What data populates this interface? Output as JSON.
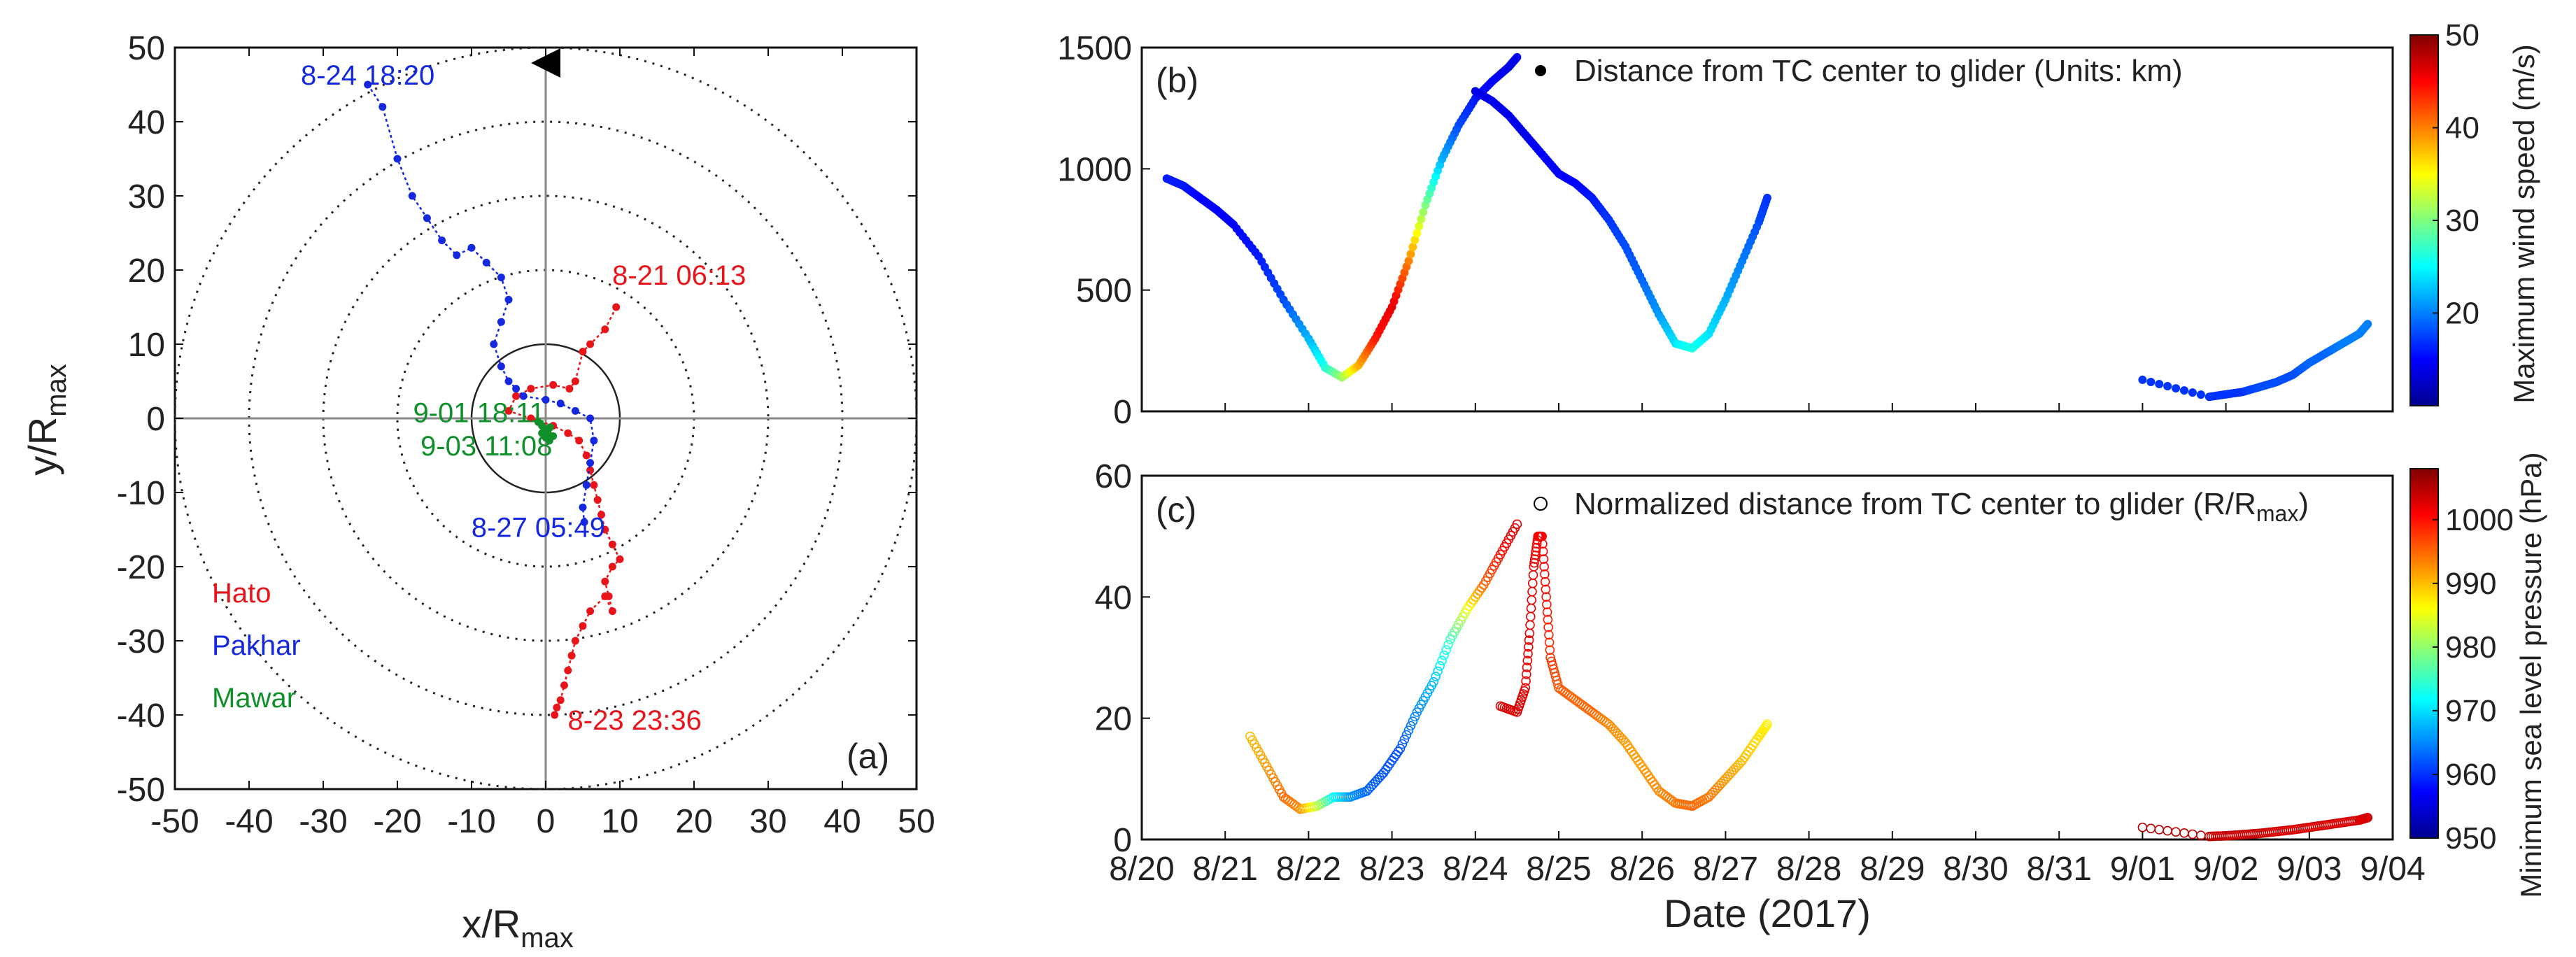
{
  "chart_data": [
    {
      "type": "scatter",
      "panel": "(a)",
      "xlabel": "x/R",
      "xlabel_sub": "max",
      "ylabel": "y/R",
      "ylabel_sub": "max",
      "xlim": [
        -50,
        50
      ],
      "ylim": [
        -50,
        50
      ],
      "xticks": [
        "-50",
        "-40",
        "-30",
        "-20",
        "-10",
        "0",
        "10",
        "20",
        "30",
        "40",
        "50"
      ],
      "yticks": [
        "-50",
        "-40",
        "-30",
        "-20",
        "-10",
        "0",
        "10",
        "20",
        "30",
        "40",
        "50"
      ],
      "rings": [
        10,
        20,
        30,
        40,
        50
      ],
      "legend": [
        {
          "name": "Hato",
          "color": "#e8141a"
        },
        {
          "name": "Pakhar",
          "color": "#1428e0"
        },
        {
          "name": "Mawar",
          "color": "#10902a"
        }
      ],
      "annotations": [
        {
          "text": "8-24 18:20",
          "color": "#1428e0",
          "x": -24,
          "y": 45
        },
        {
          "text": "8-21 06:13",
          "color": "#e8141a",
          "x": 18,
          "y": 18
        },
        {
          "text": "9-01 18:11",
          "color": "#10902a",
          "x": -9,
          "y": -0.5
        },
        {
          "text": "9-03 11:08",
          "color": "#10902a",
          "x": -8,
          "y": -5
        },
        {
          "text": "8-27 05:49",
          "color": "#1428e0",
          "x": -1,
          "y": -16
        },
        {
          "text": "8-23 23:36",
          "color": "#e8141a",
          "x": 12,
          "y": -42
        }
      ],
      "series": [
        {
          "name": "Hato",
          "color": "#e8141a",
          "x": [
            9.5,
            8,
            6,
            5,
            4,
            3.2,
            1,
            -2,
            -4,
            -5,
            -2,
            1,
            3,
            4.5,
            5.5,
            6,
            6.5,
            7,
            7.5,
            8,
            9,
            10,
            9,
            8,
            8.5,
            9,
            8,
            6,
            5,
            4,
            3.5,
            3,
            2.5,
            2,
            1.5,
            1.2
          ],
          "y": [
            15,
            12,
            10,
            9,
            5,
            4,
            4.5,
            4,
            3,
            1,
            0,
            -1,
            -2,
            -3,
            -5,
            -7,
            -9,
            -11,
            -13,
            -15,
            -17,
            -19,
            -20,
            -22,
            -24,
            -26,
            -24,
            -26,
            -28,
            -30,
            -32,
            -34,
            -36,
            -38,
            -39,
            -40
          ]
        },
        {
          "name": "Pakhar",
          "color": "#1428e0",
          "x": [
            -24,
            -22,
            -20,
            -18,
            -16,
            -14,
            -12,
            -10,
            -8,
            -6,
            -5,
            -6,
            -7,
            -6,
            -5,
            -4,
            -3,
            0,
            2,
            4,
            6,
            6.5,
            6,
            5.5,
            5,
            5.2
          ],
          "y": [
            45,
            42,
            35,
            30,
            27,
            24,
            22,
            23,
            21,
            19,
            16,
            13,
            10,
            7,
            5,
            4,
            3,
            2.5,
            2,
            1,
            0,
            -3,
            -6,
            -9,
            -12,
            -14
          ]
        },
        {
          "name": "Mawar",
          "color": "#10902a",
          "x": [
            -1,
            -0.5,
            0,
            0.3,
            0.6,
            1,
            0.5,
            0,
            -0.5,
            0.2
          ],
          "y": [
            -0.5,
            -1,
            -1.5,
            -2,
            -1.2,
            -2.4,
            -3,
            -2.6,
            -2,
            -1.8
          ]
        }
      ]
    },
    {
      "type": "scatter",
      "panel": "(b)",
      "legend_label": "Distance from TC center to glider (Units: km)",
      "xlim": [
        "8/20",
        "9/04"
      ],
      "ylim": [
        0,
        1500
      ],
      "yticks": [
        "0",
        "500",
        "1000",
        "1500"
      ],
      "colorbar": {
        "label": "Maximum wind speed (m/s)",
        "range": [
          10,
          50
        ],
        "ticks": [
          "20",
          "30",
          "40",
          "50"
        ]
      },
      "series": [
        {
          "name": "Hato",
          "x_day": [
            0.3,
            0.5,
            0.7,
            0.9,
            1.1,
            1.4,
            1.7,
            2.0,
            2.2,
            2.4,
            2.6,
            2.8,
            3.0,
            3.2,
            3.4,
            3.6,
            3.8,
            4.0,
            4.2,
            4.4,
            4.5
          ],
          "y": [
            960,
            930,
            880,
            830,
            770,
            640,
            460,
            300,
            180,
            140,
            190,
            300,
            430,
            620,
            850,
            1040,
            1180,
            1290,
            1360,
            1420,
            1460
          ],
          "wind": [
            16,
            16,
            15,
            15,
            15,
            16,
            18,
            22,
            26,
            31,
            38,
            44,
            46,
            40,
            30,
            22,
            18,
            16,
            15,
            14,
            14
          ]
        },
        {
          "name": "Pakhar",
          "x_day": [
            4.0,
            4.2,
            4.4,
            4.6,
            4.8,
            5.0,
            5.2,
            5.4,
            5.6,
            5.8,
            6.0,
            6.2,
            6.4,
            6.6,
            6.8,
            7.0,
            7.2,
            7.4,
            7.5
          ],
          "y": [
            1320,
            1280,
            1220,
            1140,
            1060,
            980,
            940,
            880,
            790,
            680,
            540,
            400,
            280,
            260,
            320,
            460,
            620,
            780,
            880
          ],
          "wind": [
            14,
            14,
            14,
            14,
            15,
            15,
            15,
            16,
            17,
            18,
            19,
            21,
            24,
            26,
            24,
            22,
            20,
            18,
            17
          ]
        },
        {
          "name": "Mawar",
          "x_day": [
            12.0,
            12.8,
            13.0,
            13.2,
            13.4,
            13.6,
            13.8,
            14.0,
            14.2,
            14.4,
            14.6,
            14.7
          ],
          "y": [
            130,
            60,
            70,
            80,
            100,
            120,
            150,
            200,
            240,
            280,
            320,
            360
          ],
          "wind": [
            17,
            17,
            17,
            17,
            18,
            18,
            18,
            19,
            19,
            20,
            20,
            20
          ]
        }
      ]
    },
    {
      "type": "scatter",
      "panel": "(c)",
      "legend_label": "Normalized distance from TC center to glider (R/R",
      "legend_label_sub": "max",
      "legend_label_end": ")",
      "xlabel": "Date (2017)",
      "xticks": [
        "8/20",
        "8/21",
        "8/22",
        "8/23",
        "8/24",
        "8/25",
        "8/26",
        "8/27",
        "8/28",
        "8/29",
        "8/30",
        "8/31",
        "9/01",
        "9/02",
        "9/03",
        "9/04"
      ],
      "xlim": [
        "8/20",
        "9/04"
      ],
      "ylim": [
        0,
        60
      ],
      "yticks": [
        "0",
        "20",
        "40",
        "60"
      ],
      "colorbar": {
        "label": "Minimum sea level pressure (hPa)",
        "range": [
          950,
          1008
        ],
        "ticks": [
          "950",
          "960",
          "970",
          "980",
          "990",
          "1000"
        ]
      },
      "series": [
        {
          "name": "Hato",
          "x_day": [
            1.3,
            1.5,
            1.7,
            1.9,
            2.1,
            2.3,
            2.5,
            2.7,
            2.9,
            3.1,
            3.3,
            3.5,
            3.7,
            3.9,
            4.1,
            4.3,
            4.5
          ],
          "y": [
            17,
            12,
            7,
            5,
            5.5,
            7,
            7,
            8,
            11,
            15,
            21,
            26,
            33,
            38,
            42,
            47,
            52
          ],
          "mslp": [
            990,
            992,
            995,
            993,
            983,
            972,
            966,
            963,
            962,
            962,
            965,
            968,
            975,
            985,
            995,
            1000,
            1003
          ]
        },
        {
          "name": "Pakhar",
          "x_day": [
            4.3,
            4.5,
            4.6,
            4.65,
            4.7,
            4.75,
            4.8,
            4.85,
            4.9,
            5.0,
            5.2,
            5.4,
            5.6,
            5.8,
            6.0,
            6.2,
            6.4,
            6.6,
            6.8,
            7.0,
            7.2,
            7.4,
            7.5
          ],
          "y": [
            22,
            21,
            25,
            34,
            45,
            50,
            50,
            40,
            30,
            25,
            23,
            21,
            19,
            16,
            12,
            8,
            6,
            5.5,
            7,
            10,
            13,
            17,
            19
          ],
          "mslp": [
            1003,
            1003,
            1002,
            1002,
            1002,
            1001,
            1001,
            1000,
            998,
            996,
            995,
            995,
            993,
            992,
            992,
            993,
            994,
            995,
            994,
            992,
            990,
            988,
            987
          ]
        },
        {
          "name": "Mawar",
          "x_day": [
            12.0,
            12.8,
            13.0,
            13.2,
            13.4,
            13.6,
            13.8,
            14.0,
            14.2,
            14.4,
            14.6,
            14.7
          ],
          "y": [
            2,
            0.5,
            0.6,
            0.8,
            1,
            1.3,
            1.6,
            2,
            2.4,
            2.8,
            3.2,
            3.6
          ],
          "mslp": [
            1005,
            1004,
            1004,
            1004,
            1004,
            1003,
            1003,
            1003,
            1003,
            1003,
            1003,
            1003
          ]
        }
      ]
    }
  ]
}
